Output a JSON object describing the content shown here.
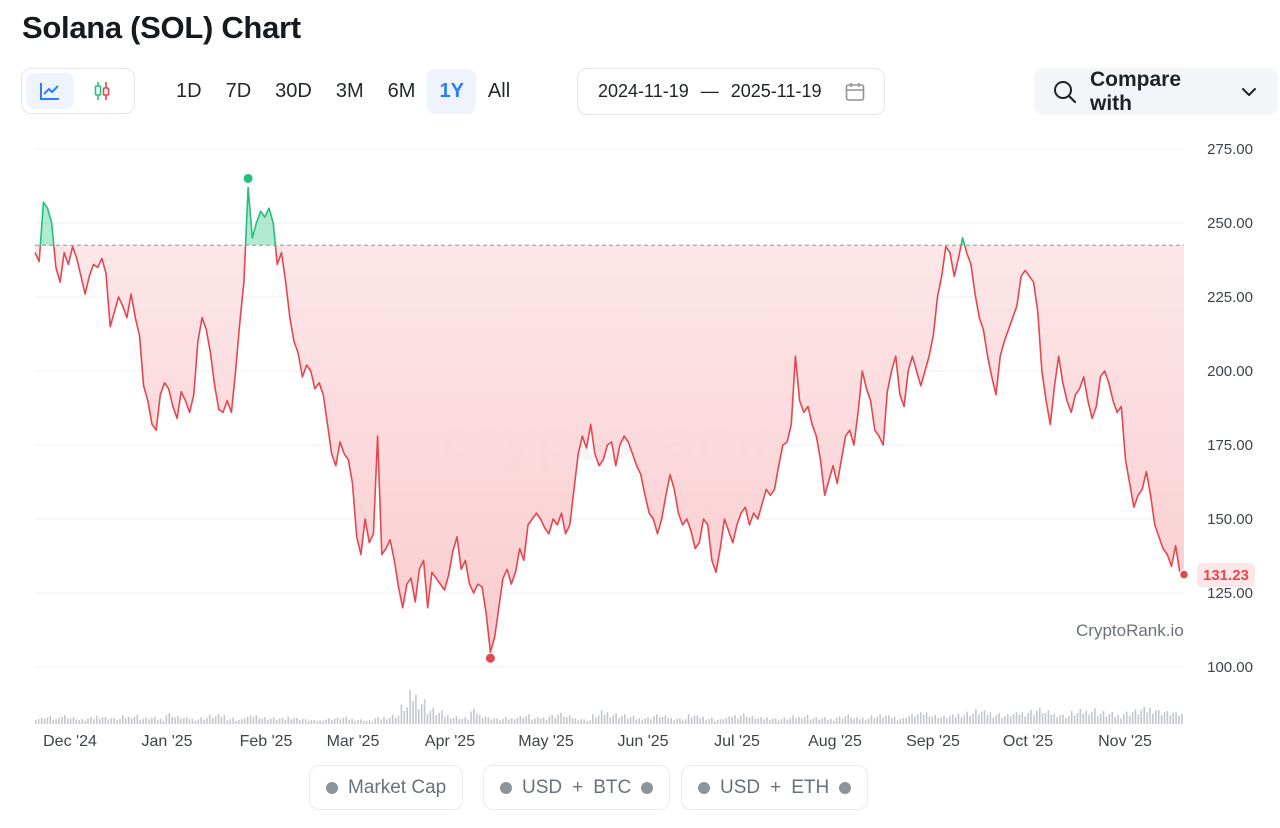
{
  "header": {
    "title": "Solana (SOL) Chart"
  },
  "chart_type_buttons": [
    {
      "icon": "line-chart-icon",
      "active": true
    },
    {
      "icon": "candlestick-icon",
      "active": false
    }
  ],
  "range_tabs": [
    {
      "label": "1D",
      "active": false
    },
    {
      "label": "7D",
      "active": false
    },
    {
      "label": "30D",
      "active": false
    },
    {
      "label": "3M",
      "active": false
    },
    {
      "label": "6M",
      "active": false
    },
    {
      "label": "1Y",
      "active": true
    },
    {
      "label": "All",
      "active": false
    }
  ],
  "date_range": {
    "start": "2024-11-19",
    "separator": "—",
    "end": "2025-11-19",
    "icon": "calendar-icon"
  },
  "compare": {
    "label": "Compare with",
    "icon": "search-icon",
    "chevron": "chevron-down-icon"
  },
  "watermark": "CryptoRank.io",
  "colors": {
    "up": "#22c07a",
    "down": "#e5464f",
    "accent": "#2d7ff9"
  },
  "toggles": [
    {
      "label": "Market Cap"
    },
    {
      "left": "USD",
      "plus": "+",
      "right": "BTC"
    },
    {
      "left": "USD",
      "plus": "+",
      "right": "ETH"
    }
  ],
  "chart_data": {
    "type": "area",
    "x_ticks": [
      "Dec '24",
      "Jan '25",
      "Feb '25",
      "Mar '25",
      "Apr '25",
      "May '25",
      "Jun '25",
      "Jul '25",
      "Aug '25",
      "Sep '25",
      "Oct '25",
      "Nov '25"
    ],
    "y_ticks": [
      "275.00",
      "250.00",
      "225.00",
      "200.00",
      "175.00",
      "150.00",
      "125.00",
      "100.00"
    ],
    "ylim": [
      100,
      275
    ],
    "baseline": 242.5,
    "last_value": "131.23",
    "high_value": 262,
    "low_value": 105,
    "x_start": "2024-11-19",
    "x_end": "2025-11-19",
    "series": [
      {
        "values": [
          240,
          237,
          257,
          255,
          250,
          235,
          230,
          240,
          236,
          242,
          238,
          232,
          226,
          232,
          236,
          235,
          238,
          233,
          215,
          220,
          225,
          222,
          218,
          226,
          218,
          212,
          195,
          190,
          182,
          180,
          192,
          196,
          194,
          188,
          184,
          193,
          190,
          186,
          192,
          210,
          218,
          214,
          206,
          195,
          187,
          186,
          190,
          186,
          200,
          216,
          230,
          262,
          245,
          250,
          254,
          252,
          255,
          250,
          236,
          240,
          230,
          218,
          210,
          206,
          198,
          202,
          200,
          194,
          196,
          192,
          182,
          172,
          168,
          176,
          172,
          170,
          162,
          144,
          138,
          150,
          142,
          145,
          178,
          138,
          140,
          143,
          136,
          127,
          120,
          128,
          130,
          122,
          133,
          136,
          120,
          132,
          130,
          128,
          126,
          131,
          139,
          144,
          133,
          136,
          128,
          125,
          128,
          127,
          118,
          105,
          110,
          120,
          130,
          133,
          128,
          132,
          140,
          136,
          148,
          150,
          152,
          150,
          147,
          145,
          150,
          148,
          152,
          145,
          148,
          160,
          172,
          178,
          174,
          182,
          172,
          168,
          170,
          175,
          176,
          168,
          175,
          178,
          176,
          172,
          168,
          165,
          158,
          152,
          150,
          145,
          150,
          158,
          165,
          160,
          152,
          148,
          150,
          146,
          140,
          142,
          150,
          148,
          136,
          132,
          140,
          150,
          146,
          142,
          148,
          152,
          154,
          148,
          152,
          150,
          155,
          160,
          158,
          160,
          168,
          175,
          176,
          182,
          205,
          190,
          186,
          188,
          182,
          178,
          170,
          158,
          163,
          168,
          162,
          170,
          178,
          180,
          175,
          186,
          200,
          194,
          190,
          180,
          178,
          175,
          193,
          200,
          205,
          192,
          188,
          200,
          205,
          200,
          195,
          200,
          205,
          212,
          225,
          232,
          242,
          240,
          232,
          238,
          245,
          240,
          236,
          226,
          218,
          214,
          205,
          198,
          192,
          205,
          210,
          214,
          218,
          222,
          232,
          234,
          232,
          230,
          220,
          200,
          190,
          182,
          195,
          205,
          196,
          190,
          186,
          192,
          194,
          198,
          190,
          184,
          188,
          198,
          200,
          196,
          190,
          186,
          188,
          170,
          162,
          154,
          158,
          160,
          166,
          158,
          148,
          144,
          140,
          138,
          134,
          141,
          132,
          131.23
        ]
      }
    ],
    "volume_relative": [
      0.2,
      0.25,
      0.18,
      0.3,
      0.22,
      0.15,
      0.2,
      0.28,
      0.22,
      0.18,
      0.25,
      0.3,
      0.2,
      0.22,
      0.18,
      0.35,
      0.25,
      0.2,
      0.18,
      0.22,
      0.28,
      0.3,
      0.2,
      0.15,
      0.25,
      0.3,
      0.22,
      0.2,
      0.18,
      0.25,
      0.2,
      0.15,
      0.12,
      0.18,
      0.2,
      0.22,
      0.18,
      0.15,
      0.12,
      0.2,
      0.25,
      0.3,
      0.6,
      1.0,
      0.8,
      0.5,
      0.4,
      0.3,
      0.25,
      0.2,
      0.45,
      0.3,
      0.22,
      0.18,
      0.2,
      0.25,
      0.3,
      0.2,
      0.22,
      0.3,
      0.35,
      0.25,
      0.2,
      0.15,
      0.3,
      0.4,
      0.35,
      0.3,
      0.25,
      0.2,
      0.22,
      0.3,
      0.25,
      0.2,
      0.18,
      0.3,
      0.25,
      0.2,
      0.15,
      0.22,
      0.3,
      0.35,
      0.25,
      0.2,
      0.22,
      0.18,
      0.2,
      0.25,
      0.3,
      0.22,
      0.2,
      0.18,
      0.25,
      0.3,
      0.2,
      0.22,
      0.28,
      0.3,
      0.25,
      0.2,
      0.3,
      0.35,
      0.4,
      0.3,
      0.25,
      0.28,
      0.35,
      0.4,
      0.45,
      0.4,
      0.35,
      0.3,
      0.35,
      0.4,
      0.45,
      0.5,
      0.4,
      0.35,
      0.3,
      0.4,
      0.45,
      0.5,
      0.4,
      0.35,
      0.3,
      0.4,
      0.45,
      0.5,
      0.55,
      0.45,
      0.4,
      0.35
    ]
  }
}
